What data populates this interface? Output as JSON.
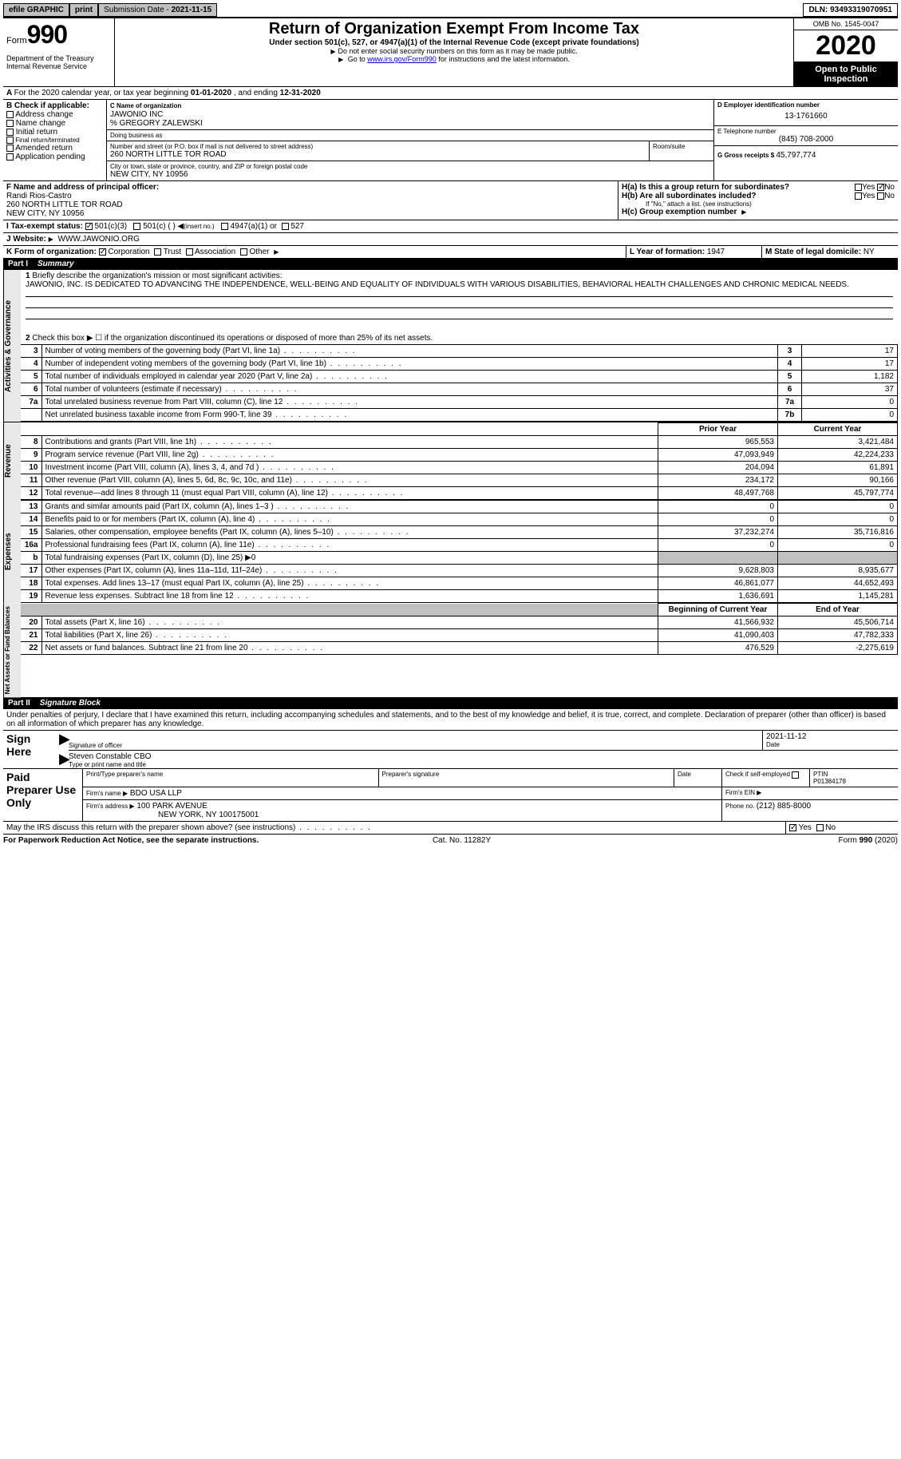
{
  "topbar": {
    "efile": "efile GRAPHIC",
    "print": "print",
    "submission_label": "Submission Date - ",
    "submission_date": "2021-11-15",
    "dln_label": "DLN: ",
    "dln": "93493319070951"
  },
  "header": {
    "form_label": "Form",
    "form_no": "990",
    "dept": "Department of the Treasury\nInternal Revenue Service",
    "title": "Return of Organization Exempt From Income Tax",
    "subtitle": "Under section 501(c), 527, or 4947(a)(1) of the Internal Revenue Code (except private foundations)",
    "note1": "Do not enter social security numbers on this form as it may be made public.",
    "note2_pre": "Go to ",
    "note2_link": "www.irs.gov/Form990",
    "note2_post": " for instructions and the latest information.",
    "omb": "OMB No. 1545-0047",
    "year": "2020",
    "inspect": "Open to Public\nInspection"
  },
  "A": {
    "text": "For the 2020 calendar year, or tax year beginning ",
    "begin": "01-01-2020",
    "mid": " , and ending ",
    "end": "12-31-2020"
  },
  "B": {
    "label": "B Check if applicable:",
    "opts": [
      "Address change",
      "Name change",
      "Initial return",
      "Final return/terminated",
      "Amended return",
      "Application pending"
    ]
  },
  "C": {
    "name_label": "C Name of organization",
    "name": "JAWONIO INC",
    "care_of": "% GREGORY ZALEWSKI",
    "dba_label": "Doing business as",
    "addr_label": "Number and street (or P.O. box if mail is not delivered to street address)",
    "room_label": "Room/suite",
    "addr": "260 NORTH LITTLE TOR ROAD",
    "city_label": "City or town, state or province, country, and ZIP or foreign postal code",
    "city": "NEW CITY, NY  10956"
  },
  "D": {
    "label": "D Employer identification number",
    "val": "13-1761660"
  },
  "E": {
    "label": "E Telephone number",
    "val": "(845) 708-2000"
  },
  "G": {
    "label": "G Gross receipts $ ",
    "val": "45,797,774"
  },
  "F": {
    "label": "F Name and address of principal officer:",
    "name": "Randi Rios-Castro",
    "addr1": "260 NORTH LITTLE TOR ROAD",
    "addr2": "NEW CITY, NY  10956"
  },
  "H": {
    "a_label": "H(a)  Is this a group return for subordinates?",
    "a_yes": "Yes",
    "a_no": "No",
    "b_label": "H(b)  Are all subordinates included?",
    "b_note": "If \"No,\" attach a list. (see instructions)",
    "c_label": "H(c)  Group exemption number "
  },
  "I": {
    "label": "I    Tax-exempt status:",
    "o1": "501(c)(3)",
    "o2": "501(c) (  )",
    "o2n": "(insert no.)",
    "o3": "4947(a)(1) or",
    "o4": "527"
  },
  "J": {
    "label": "J   Website: ",
    "val": "WWW.JAWONIO.ORG"
  },
  "K": {
    "label": "K Form of organization:",
    "o1": "Corporation",
    "o2": "Trust",
    "o3": "Association",
    "o4": "Other"
  },
  "L": {
    "label": "L Year of formation: ",
    "val": "1947"
  },
  "M": {
    "label": "M State of legal domicile: ",
    "val": "NY"
  },
  "part1": {
    "num": "Part I",
    "title": "Summary"
  },
  "p1": {
    "l1": "Briefly describe the organization's mission or most significant activities:",
    "mission": "JAWONIO, INC. IS DEDICATED TO ADVANCING THE INDEPENDENCE, WELL-BEING AND EQUALITY OF INDIVIDUALS WITH VARIOUS DISABILITIES, BEHAVIORAL HEALTH CHALLENGES AND CHRONIC MEDICAL NEEDS.",
    "l2": "Check this box ▶ ☐  if the organization discontinued its operations or disposed of more than 25% of its net assets.",
    "rows_ag": [
      {
        "n": "3",
        "t": "Number of voting members of the governing body (Part VI, line 1a)",
        "k": "3",
        "v": "17"
      },
      {
        "n": "4",
        "t": "Number of independent voting members of the governing body (Part VI, line 1b)",
        "k": "4",
        "v": "17"
      },
      {
        "n": "5",
        "t": "Total number of individuals employed in calendar year 2020 (Part V, line 2a)",
        "k": "5",
        "v": "1,182"
      },
      {
        "n": "6",
        "t": "Total number of volunteers (estimate if necessary)",
        "k": "6",
        "v": "37"
      },
      {
        "n": "7a",
        "t": "Total unrelated business revenue from Part VIII, column (C), line 12",
        "k": "7a",
        "v": "0"
      },
      {
        "n": "",
        "t": "Net unrelated business taxable income from Form 990-T, line 39",
        "k": "7b",
        "v": "0"
      }
    ],
    "hdr_prior": "Prior Year",
    "hdr_curr": "Current Year",
    "rev": [
      {
        "n": "8",
        "t": "Contributions and grants (Part VIII, line 1h)",
        "p": "965,553",
        "c": "3,421,484"
      },
      {
        "n": "9",
        "t": "Program service revenue (Part VIII, line 2g)",
        "p": "47,093,949",
        "c": "42,224,233"
      },
      {
        "n": "10",
        "t": "Investment income (Part VIII, column (A), lines 3, 4, and 7d )",
        "p": "204,094",
        "c": "61,891"
      },
      {
        "n": "11",
        "t": "Other revenue (Part VIII, column (A), lines 5, 6d, 8c, 9c, 10c, and 11e)",
        "p": "234,172",
        "c": "90,166"
      },
      {
        "n": "12",
        "t": "Total revenue—add lines 8 through 11 (must equal Part VIII, column (A), line 12)",
        "p": "48,497,768",
        "c": "45,797,774"
      }
    ],
    "exp": [
      {
        "n": "13",
        "t": "Grants and similar amounts paid (Part IX, column (A), lines 1–3 )",
        "p": "0",
        "c": "0"
      },
      {
        "n": "14",
        "t": "Benefits paid to or for members (Part IX, column (A), line 4)",
        "p": "0",
        "c": "0"
      },
      {
        "n": "15",
        "t": "Salaries, other compensation, employee benefits (Part IX, column (A), lines 5–10)",
        "p": "37,232,274",
        "c": "35,716,816"
      },
      {
        "n": "16a",
        "t": "Professional fundraising fees (Part IX, column (A), line 11e)",
        "p": "0",
        "c": "0"
      },
      {
        "n": "b",
        "t": "Total fundraising expenses (Part IX, column (D), line 25) ▶0",
        "p": "",
        "c": "",
        "grey": true
      },
      {
        "n": "17",
        "t": "Other expenses (Part IX, column (A), lines 11a–11d, 11f–24e)",
        "p": "9,628,803",
        "c": "8,935,677"
      },
      {
        "n": "18",
        "t": "Total expenses. Add lines 13–17 (must equal Part IX, column (A), line 25)",
        "p": "46,861,077",
        "c": "44,652,493"
      },
      {
        "n": "19",
        "t": "Revenue less expenses. Subtract line 18 from line 12",
        "p": "1,636,691",
        "c": "1,145,281"
      }
    ],
    "hdr_boy": "Beginning of Current Year",
    "hdr_eoy": "End of Year",
    "net": [
      {
        "n": "20",
        "t": "Total assets (Part X, line 16)",
        "p": "41,566,932",
        "c": "45,506,714"
      },
      {
        "n": "21",
        "t": "Total liabilities (Part X, line 26)",
        "p": "41,090,403",
        "c": "47,782,333"
      },
      {
        "n": "22",
        "t": "Net assets or fund balances. Subtract line 21 from line 20",
        "p": "476,529",
        "c": "-2,275,619"
      }
    ],
    "vlab_ag": "Activities & Governance",
    "vlab_rev": "Revenue",
    "vlab_exp": "Expenses",
    "vlab_net": "Net Assets or\nFund Balances"
  },
  "part2": {
    "num": "Part II",
    "title": "Signature Block"
  },
  "sig": {
    "decl": "Under penalties of perjury, I declare that I have examined this return, including accompanying schedules and statements, and to the best of my knowledge and belief, it is true, correct, and complete. Declaration of preparer (other than officer) is based on all information of which preparer has any knowledge.",
    "sign_here": "Sign Here",
    "sig_officer": "Signature of officer",
    "date_label": "Date",
    "date": "2021-11-12",
    "name_title": "Steven Constable CBO",
    "name_title_label": "Type or print name and title",
    "paid": "Paid Preparer Use Only",
    "prep_name_label": "Print/Type preparer's name",
    "prep_sig_label": "Preparer's signature",
    "check_label": "Check         if self-employed",
    "ptin_label": "PTIN",
    "ptin": "P01384178",
    "firm_name_label": "Firm's name   ▶",
    "firm_name": "BDO USA LLP",
    "firm_ein_label": "Firm's EIN ▶",
    "firm_addr_label": "Firm's address ▶",
    "firm_addr": "100 PARK AVENUE",
    "firm_city": "NEW YORK, NY  100175001",
    "firm_phone_label": "Phone no. ",
    "firm_phone": "(212) 885-8000",
    "may_irs": "May the IRS discuss this return with the preparer shown above? (see instructions)",
    "yes": "Yes",
    "no": "No"
  },
  "footer": {
    "left": "For Paperwork Reduction Act Notice, see the separate instructions.",
    "mid": "Cat. No. 11282Y",
    "right": "Form 990 (2020)"
  },
  "colors": {
    "grey": "#c0c0c0",
    "link": "#0000cc"
  }
}
